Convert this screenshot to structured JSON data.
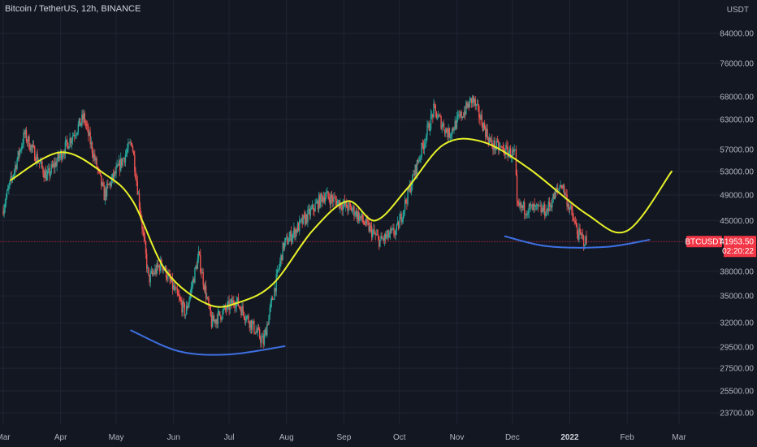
{
  "header": {
    "title": "Bitcoin / TetherUS, 12h, BINANCE",
    "unit": "USDT"
  },
  "chart_data": {
    "type": "candlestick",
    "symbol": "BTCUSDT",
    "timeframe": "12h",
    "exchange": "BINANCE",
    "y_scale": "log",
    "ylim": [
      22700,
      92000
    ],
    "y_ticks": [
      "84000.00",
      "76000.00",
      "68000.00",
      "63000.00",
      "57000.00",
      "53000.00",
      "49000.00",
      "45000.00",
      "38000.00",
      "35000.00",
      "32000.00",
      "29500.00",
      "27500.00",
      "25500.00",
      "23700.00"
    ],
    "y_tick_values": [
      84000,
      76000,
      68000,
      63000,
      57000,
      53000,
      49000,
      45000,
      38000,
      35000,
      32000,
      29500,
      27500,
      25500,
      23700
    ],
    "x_ticks": [
      {
        "label": "Mar",
        "bold": false
      },
      {
        "label": "Apr",
        "bold": false
      },
      {
        "label": "May",
        "bold": false
      },
      {
        "label": "Jun",
        "bold": false
      },
      {
        "label": "Jul",
        "bold": false
      },
      {
        "label": "Aug",
        "bold": false
      },
      {
        "label": "Sep",
        "bold": false
      },
      {
        "label": "Oct",
        "bold": false
      },
      {
        "label": "Nov",
        "bold": false
      },
      {
        "label": "Dec",
        "bold": false
      },
      {
        "label": "2022",
        "bold": true
      },
      {
        "label": "Feb",
        "bold": false
      },
      {
        "label": "Mar",
        "bold": false
      }
    ],
    "x_tick_dates": [
      "2021-03-01",
      "2021-04-01",
      "2021-05-01",
      "2021-06-01",
      "2021-07-01",
      "2021-08-01",
      "2021-09-01",
      "2021-10-01",
      "2021-11-01",
      "2021-12-01",
      "2022-01-01",
      "2022-02-01",
      "2022-03-01"
    ],
    "price_anchors": [
      [
        "2021-03-01",
        46500
      ],
      [
        "2021-03-13",
        60000
      ],
      [
        "2021-03-25",
        52000
      ],
      [
        "2021-04-14",
        63500
      ],
      [
        "2021-04-25",
        49000
      ],
      [
        "2021-05-10",
        58500
      ],
      [
        "2021-05-19",
        37000
      ],
      [
        "2021-05-26",
        39000
      ],
      [
        "2021-06-08",
        33000
      ],
      [
        "2021-06-15",
        40000
      ],
      [
        "2021-06-22",
        32000
      ],
      [
        "2021-07-05",
        34500
      ],
      [
        "2021-07-20",
        30000
      ],
      [
        "2021-07-31",
        41500
      ],
      [
        "2021-08-22",
        49000
      ],
      [
        "2021-09-07",
        46500
      ],
      [
        "2021-09-21",
        42000
      ],
      [
        "2021-09-30",
        43500
      ],
      [
        "2021-10-20",
        65000
      ],
      [
        "2021-10-28",
        60000
      ],
      [
        "2021-11-10",
        67500
      ],
      [
        "2021-11-20",
        58000
      ],
      [
        "2021-12-03",
        56000
      ],
      [
        "2021-12-04",
        47000
      ],
      [
        "2021-12-20",
        46500
      ],
      [
        "2021-12-28",
        51000
      ],
      [
        "2022-01-06",
        43000
      ],
      [
        "2022-01-10",
        41953.5
      ]
    ],
    "last_price": {
      "symbol_label": "BTCUSDT",
      "price_label": "41953.50",
      "countdown_label": "02:20:22",
      "price": 41953.5,
      "color": "#f23645"
    },
    "drawings": [
      {
        "name": "yellow-wave",
        "color": "#e8f229",
        "points": [
          [
            "2021-03-05",
            51500
          ],
          [
            "2021-04-01",
            56500
          ],
          [
            "2021-04-25",
            52500
          ],
          [
            "2021-05-10",
            48000
          ],
          [
            "2021-05-28",
            38000
          ],
          [
            "2021-06-20",
            34000
          ],
          [
            "2021-07-07",
            34300
          ],
          [
            "2021-07-25",
            36500
          ],
          [
            "2021-08-15",
            43500
          ],
          [
            "2021-09-03",
            48000
          ],
          [
            "2021-09-18",
            45000
          ],
          [
            "2021-10-05",
            50000
          ],
          [
            "2021-10-25",
            58000
          ],
          [
            "2021-11-15",
            58500
          ],
          [
            "2021-12-10",
            53500
          ],
          [
            "2022-01-10",
            46000
          ],
          [
            "2022-02-01",
            43500
          ],
          [
            "2022-02-25",
            53000
          ]
        ]
      },
      {
        "name": "blue-arc-left",
        "color": "#3d6fe0",
        "points": [
          [
            "2021-05-09",
            31200
          ],
          [
            "2021-06-04",
            29100
          ],
          [
            "2021-07-01",
            28800
          ],
          [
            "2021-07-31",
            29600
          ]
        ]
      },
      {
        "name": "blue-arc-right",
        "color": "#3d6fe0",
        "points": [
          [
            "2021-11-27",
            42700
          ],
          [
            "2021-12-20",
            41300
          ],
          [
            "2022-01-20",
            41200
          ],
          [
            "2022-02-13",
            42200
          ]
        ]
      }
    ],
    "colors": {
      "up": "#26a69a",
      "down": "#ef5350",
      "grid": "#1f2433",
      "background": "#131722"
    },
    "grid": true
  }
}
